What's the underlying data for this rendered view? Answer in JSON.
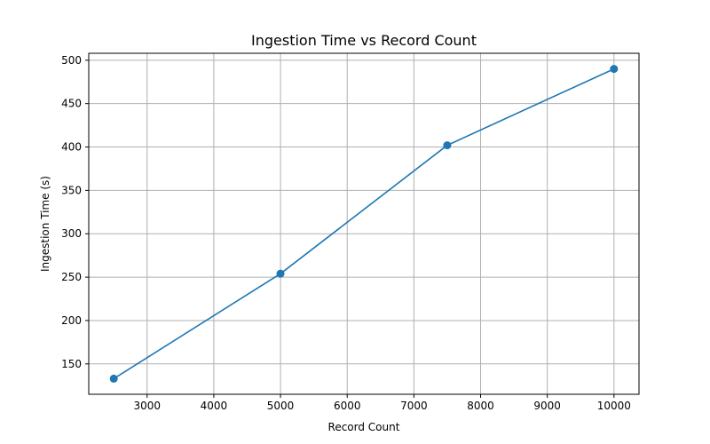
{
  "chart_data": {
    "type": "line",
    "title": "Ingestion Time vs Record Count",
    "xlabel": "Record Count",
    "ylabel": "Ingestion Time (s)",
    "x": [
      2500,
      5000,
      7500,
      10000
    ],
    "series": [
      {
        "values": [
          133,
          254,
          402,
          490
        ],
        "color": "#1f77b4",
        "marker": "circle"
      }
    ],
    "xlim": [
      2125,
      10375
    ],
    "ylim": [
      115,
      508
    ],
    "xticks": [
      "3000",
      "4000",
      "5000",
      "6000",
      "7000",
      "8000",
      "9000",
      "10000"
    ],
    "yticks": [
      "150",
      "200",
      "250",
      "300",
      "350",
      "400",
      "450",
      "500"
    ],
    "grid": true,
    "colors": {
      "grid": "#b0b0b0",
      "axis": "#000000",
      "line": "#1f77b4"
    }
  }
}
